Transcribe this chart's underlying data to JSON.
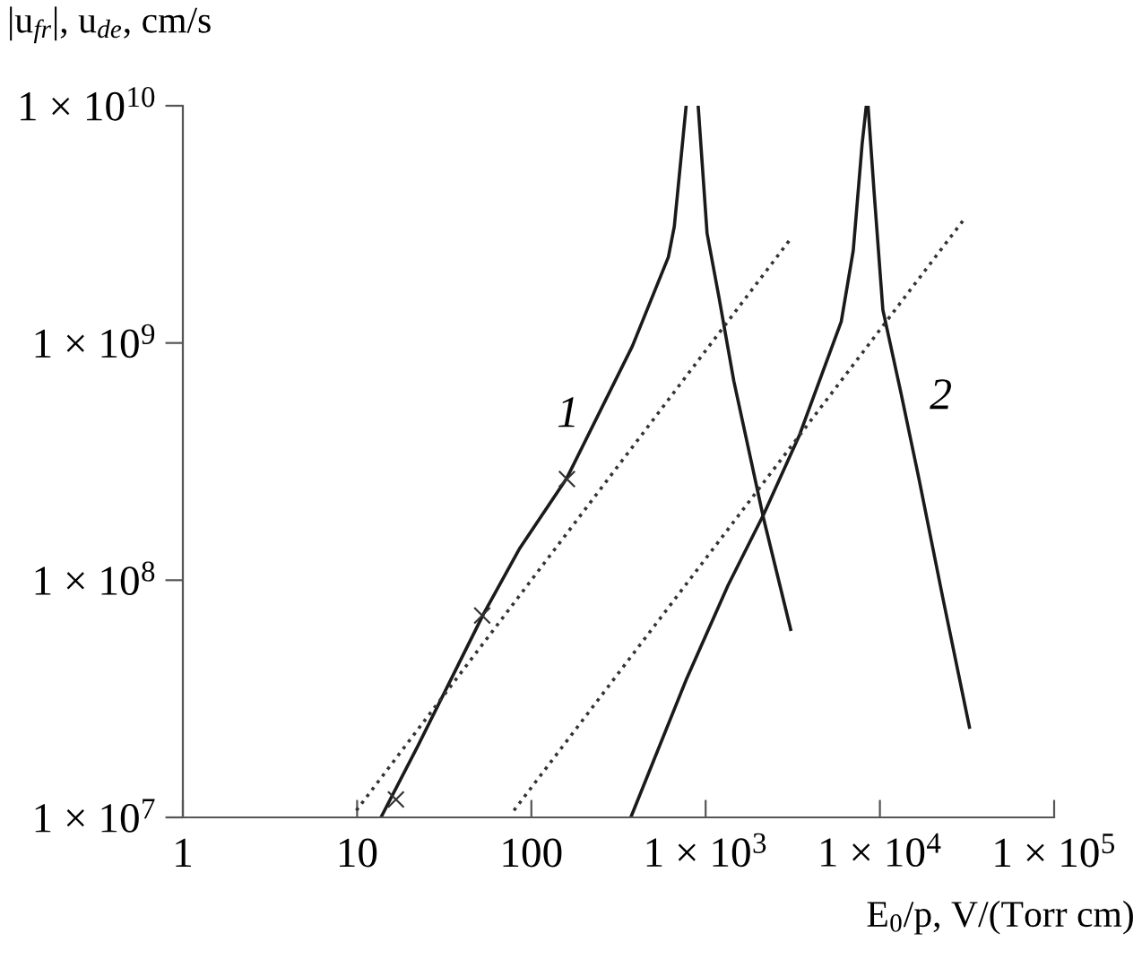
{
  "chart_data": {
    "type": "line",
    "ylabel": "|u$_{fr}$|, u$_{de}$, cm/s",
    "xlabel": "E$_{0}$/p, V/(Torr cm)",
    "log": "xy",
    "grid": false,
    "legend": false,
    "marker": "none",
    "xlim": [
      1,
      100000
    ],
    "ylim": [
      10000000,
      10000000000
    ],
    "xticks": [
      1,
      10,
      100,
      {
        "value": 1000,
        "label": "1 × 10$^{3}$"
      },
      {
        "value": 10000,
        "label": "1 × 10$^{4}$"
      },
      {
        "value": 100000,
        "label": "1 × 10$^{5}$"
      }
    ],
    "yticks": [
      {
        "value": 10000000,
        "label": "1 × 10$^{7}$"
      },
      {
        "value": 100000000,
        "label": "1 × 10$^{8}$"
      },
      {
        "value": 1000000000,
        "label": "1 × 10$^{9}$"
      },
      {
        "value": 10000000000,
        "label": "1 × 10$^{10}$"
      }
    ],
    "series": [
      {
        "color": "#1a1a1a",
        "line_style": "solid",
        "x": [
          13.7,
          22.3,
          53.1,
          85.1,
          160,
          380,
          611,
          661,
          773
        ],
        "values": [
          10000000,
          20000000,
          72000000,
          135000000,
          270000000,
          970000000,
          2300000000,
          3100000000,
          10000000000
        ]
      },
      {
        "color": "#1a1a1a",
        "line_style": "solid",
        "x": [
          906,
          1019,
          1194,
          1452,
          2158,
          3076
        ],
        "values": [
          10000000000,
          2900000000,
          1550000000,
          690000000,
          180000000,
          62000000
        ]
      },
      {
        "color": "#1a1a1a",
        "line_style": "solid",
        "x": [
          372,
          773,
          1343,
          2158,
          3459,
          6000,
          7031,
          7907,
          8356
        ],
        "values": [
          10000000,
          38000000,
          95000000,
          190000000,
          410000000,
          1230000000,
          2450000000,
          6900000000,
          10000000000
        ]
      },
      {
        "color": "#1a1a1a",
        "line_style": "solid",
        "x": [
          8551,
          9247,
          10399,
          13183,
          16711,
          22909,
          32659
        ],
        "values": [
          10000000000,
          4400000000,
          1380000000,
          620000000,
          270000000,
          85000000,
          24000000
        ]
      },
      {
        "color": "#333333",
        "line_style": "dotted",
        "x": [
          9.9,
          3076
        ],
        "values": [
          10700000,
          2750000000
        ]
      },
      {
        "color": "#333333",
        "line_style": "dotted",
        "x": [
          79.4,
          30200
        ],
        "values": [
          10700000,
          3300000000
        ]
      },
      {
        "type": "scatter",
        "marker": "cross",
        "color": "#333333",
        "x": [
          16.7,
          52.2,
          160
        ],
        "values": [
          11900000,
          71000000,
          267000000
        ]
      }
    ],
    "annotations": [
      "1",
      "2"
    ]
  }
}
